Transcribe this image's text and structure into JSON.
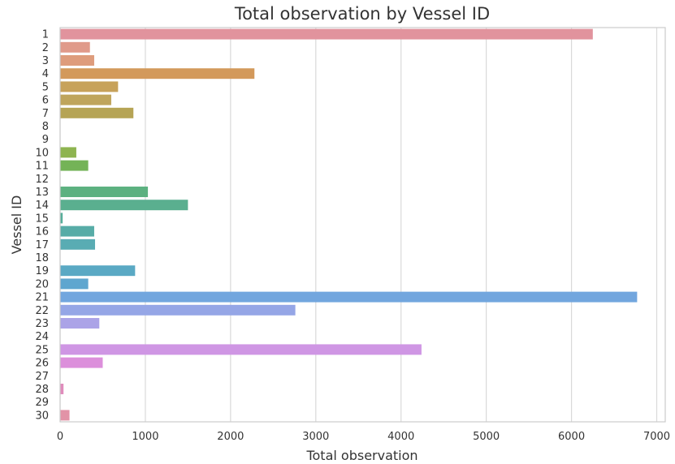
{
  "chart_data": {
    "type": "bar",
    "orientation": "horizontal",
    "title": "Total observation by Vessel ID",
    "xlabel": "Total observation",
    "ylabel": "Vessel ID",
    "xlim": [
      0,
      7100
    ],
    "xticks": [
      0,
      1000,
      2000,
      3000,
      4000,
      5000,
      6000,
      7000
    ],
    "grid": "vertical",
    "categories": [
      "1",
      "2",
      "3",
      "4",
      "5",
      "6",
      "7",
      "8",
      "9",
      "10",
      "11",
      "12",
      "13",
      "14",
      "15",
      "16",
      "17",
      "18",
      "19",
      "20",
      "21",
      "22",
      "23",
      "24",
      "25",
      "26",
      "27",
      "28",
      "29",
      "30"
    ],
    "values": [
      6250,
      350,
      400,
      2280,
      680,
      600,
      860,
      0,
      0,
      190,
      330,
      0,
      1030,
      1500,
      30,
      400,
      410,
      0,
      880,
      330,
      6770,
      2760,
      460,
      0,
      4240,
      500,
      0,
      40,
      0,
      110
    ],
    "colors": [
      "#e1939d",
      "#e09a8a",
      "#de9c7c",
      "#d3995b",
      "#c7a25a",
      "#bfa55c",
      "#b6a455",
      "#a9a64f",
      "#9fad4f",
      "#8eb450",
      "#74b357",
      "#5db466",
      "#5cb180",
      "#5aaf8f",
      "#57ae9a",
      "#57aca7",
      "#59acb3",
      "#5aacbd",
      "#5aa9c4",
      "#5ea6cf",
      "#72a6de",
      "#95a6e6",
      "#aba3e7",
      "#c0a0e7",
      "#cf96e4",
      "#dc8fdb",
      "#df8ccd",
      "#e08cbc",
      "#e18eb0",
      "#e293a7"
    ]
  }
}
